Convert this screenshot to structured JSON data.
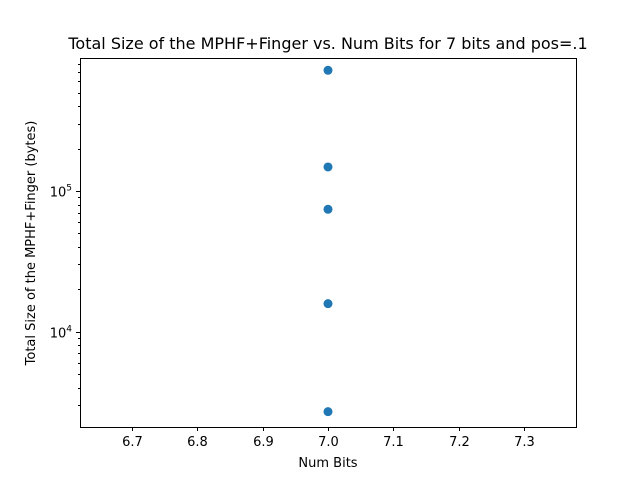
{
  "chart_data": {
    "type": "scatter",
    "title": "Total Size of the MPHF+Finger vs. Num Bits for 7 bits and pos=.1",
    "xlabel": "Num Bits",
    "ylabel": "Total Size of the MPHF+Finger (bytes)",
    "xlim": [
      6.62,
      7.38
    ],
    "ylim": [
      2100,
      880000
    ],
    "yscale": "log",
    "grid": false,
    "x_ticks": [
      6.7,
      6.8,
      6.9,
      7.0,
      7.1,
      7.2,
      7.3
    ],
    "x_tick_labels": [
      "6.7",
      "6.8",
      "6.9",
      "7.0",
      "7.1",
      "7.2",
      "7.3"
    ],
    "y_major_ticks": [
      {
        "value": 10000,
        "base": "10",
        "exp": "4"
      },
      {
        "value": 100000,
        "base": "10",
        "exp": "5"
      }
    ],
    "y_minor_ticks": [
      3000,
      4000,
      5000,
      6000,
      7000,
      8000,
      9000,
      20000,
      30000,
      40000,
      50000,
      60000,
      70000,
      80000,
      90000,
      200000,
      300000,
      400000,
      500000,
      600000,
      700000,
      800000
    ],
    "marker_color": "#1f77b4",
    "points": [
      {
        "x": 7.0,
        "y": 720000
      },
      {
        "x": 7.0,
        "y": 148000
      },
      {
        "x": 7.0,
        "y": 74000
      },
      {
        "x": 7.0,
        "y": 15800
      },
      {
        "x": 7.0,
        "y": 2700
      }
    ]
  }
}
